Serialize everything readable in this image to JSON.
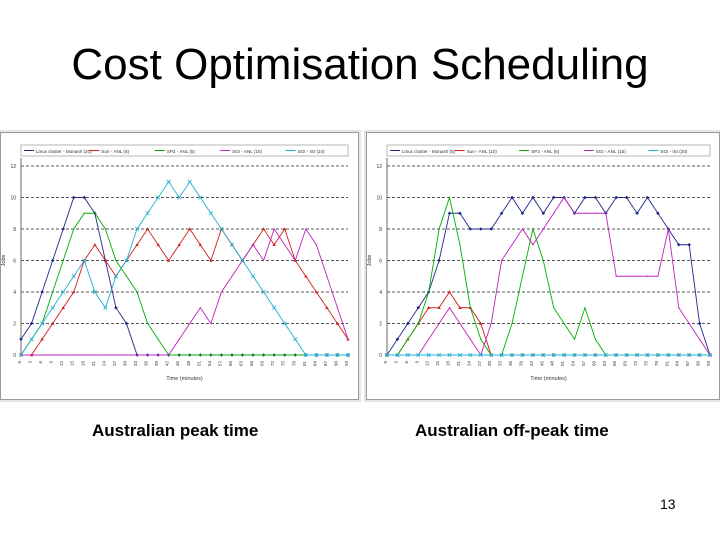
{
  "slide": {
    "title": "Cost Optimisation Scheduling",
    "slide_number": "13"
  },
  "captions": {
    "left": "Australian peak time",
    "right": "Australian off-peak time"
  },
  "chart_data": [
    {
      "type": "line",
      "caption": "Australian peak time",
      "xlabel": "Time (minutes)",
      "ylabel": "Jobs",
      "ylim": [
        0,
        12
      ],
      "yticks": [
        0,
        2,
        4,
        6,
        8,
        10,
        12
      ],
      "x": [
        0,
        3,
        6,
        9,
        12,
        15,
        18,
        21,
        24,
        27,
        30,
        33,
        36,
        39,
        42,
        45,
        48,
        51,
        54,
        57,
        60,
        63,
        66,
        69,
        72,
        75,
        78,
        81,
        84,
        87,
        90,
        93
      ],
      "grid": "dashed-horizontal",
      "legend": "top",
      "series": [
        {
          "name": "Linux cluster - Monash (20)",
          "color": "#1f2a8a",
          "marker": "diamond",
          "values": [
            1,
            2,
            4,
            6,
            8,
            10,
            10,
            9,
            6,
            3,
            2,
            0,
            0,
            0,
            0,
            0,
            0,
            0,
            0,
            0,
            0,
            0,
            0,
            0,
            0,
            0,
            0,
            0,
            0,
            0,
            0,
            0
          ]
        },
        {
          "name": "Sun - ANL (8)",
          "color": "#d21e1e",
          "marker": "triangle",
          "values": [
            0,
            0,
            1,
            2,
            3,
            4,
            6,
            7,
            6,
            5,
            6,
            7,
            8,
            7,
            6,
            7,
            8,
            7,
            6,
            8,
            7,
            6,
            7,
            8,
            7,
            8,
            6,
            5,
            4,
            3,
            2,
            1
          ]
        },
        {
          "name": "SP2 - ANL (5)",
          "color": "#00b000",
          "marker": "none",
          "values": [
            0,
            1,
            2,
            4,
            6,
            8,
            9,
            9,
            8,
            6,
            5,
            4,
            2,
            1,
            0,
            0,
            0,
            0,
            0,
            0,
            0,
            0,
            0,
            0,
            0,
            0,
            0,
            0,
            0,
            0,
            0,
            0
          ]
        },
        {
          "name": "SGI - ANL (15)",
          "color": "#c020c0",
          "marker": "none",
          "values": [
            0,
            0,
            0,
            0,
            0,
            0,
            0,
            0,
            0,
            0,
            0,
            0,
            0,
            0,
            0,
            1,
            2,
            3,
            2,
            4,
            5,
            6,
            7,
            6,
            8,
            7,
            6,
            8,
            7,
            5,
            3,
            1
          ]
        },
        {
          "name": "SGI - ISI (10)",
          "color": "#20b0d0",
          "marker": "star",
          "values": [
            0,
            1,
            2,
            3,
            4,
            5,
            6,
            4,
            3,
            5,
            6,
            8,
            9,
            10,
            11,
            10,
            11,
            10,
            9,
            8,
            7,
            6,
            5,
            4,
            3,
            2,
            1,
            0,
            0,
            0,
            0,
            0
          ]
        }
      ]
    },
    {
      "type": "line",
      "caption": "Australian off-peak time",
      "xlabel": "Time (minutes)",
      "ylabel": "Jobs",
      "ylim": [
        0,
        12
      ],
      "yticks": [
        0,
        2,
        4,
        6,
        8,
        10,
        12
      ],
      "x": [
        0,
        3,
        6,
        9,
        12,
        15,
        18,
        21,
        24,
        27,
        30,
        33,
        36,
        39,
        42,
        45,
        48,
        51,
        54,
        57,
        60,
        63,
        66,
        69,
        72,
        75,
        78,
        81,
        84,
        87,
        90,
        93
      ],
      "grid": "dashed-horizontal",
      "legend": "top",
      "series": [
        {
          "name": "Linux cluster - Monash (5)",
          "color": "#1f2a8a",
          "marker": "diamond",
          "values": [
            0,
            1,
            2,
            3,
            4,
            6,
            9,
            9,
            8,
            8,
            8,
            9,
            10,
            9,
            10,
            9,
            10,
            10,
            9,
            10,
            10,
            9,
            10,
            10,
            9,
            10,
            9,
            8,
            7,
            7,
            2,
            0
          ]
        },
        {
          "name": "Sun - ANL (10)",
          "color": "#d21e1e",
          "marker": "triangle",
          "values": [
            0,
            0,
            1,
            2,
            3,
            3,
            4,
            3,
            3,
            2,
            0,
            0,
            0,
            0,
            0,
            0,
            0,
            0,
            0,
            0,
            0,
            0,
            0,
            0,
            0,
            0,
            0,
            0,
            0,
            0,
            0,
            0
          ]
        },
        {
          "name": "SP2 - ANL (5)",
          "color": "#00b000",
          "marker": "none",
          "values": [
            0,
            0,
            1,
            2,
            4,
            8,
            10,
            7,
            3,
            1,
            0,
            0,
            2,
            5,
            8,
            6,
            3,
            2,
            1,
            3,
            1,
            0,
            0,
            0,
            0,
            0,
            0,
            0,
            0,
            0,
            0,
            0
          ]
        },
        {
          "name": "SGI - ANL (15)",
          "color": "#c020c0",
          "marker": "none",
          "values": [
            0,
            0,
            0,
            0,
            1,
            2,
            3,
            2,
            1,
            0,
            2,
            6,
            7,
            8,
            7,
            8,
            9,
            10,
            9,
            9,
            9,
            9,
            5,
            5,
            5,
            5,
            5,
            8,
            3,
            2,
            1,
            0
          ]
        },
        {
          "name": "SGI - ISI (20)",
          "color": "#20b0d0",
          "marker": "star",
          "values": [
            0,
            0,
            0,
            0,
            0,
            0,
            0,
            0,
            0,
            0,
            0,
            0,
            0,
            0,
            0,
            0,
            0,
            0,
            0,
            0,
            0,
            0,
            0,
            0,
            0,
            0,
            0,
            0,
            0,
            0,
            0,
            0
          ]
        }
      ]
    }
  ]
}
